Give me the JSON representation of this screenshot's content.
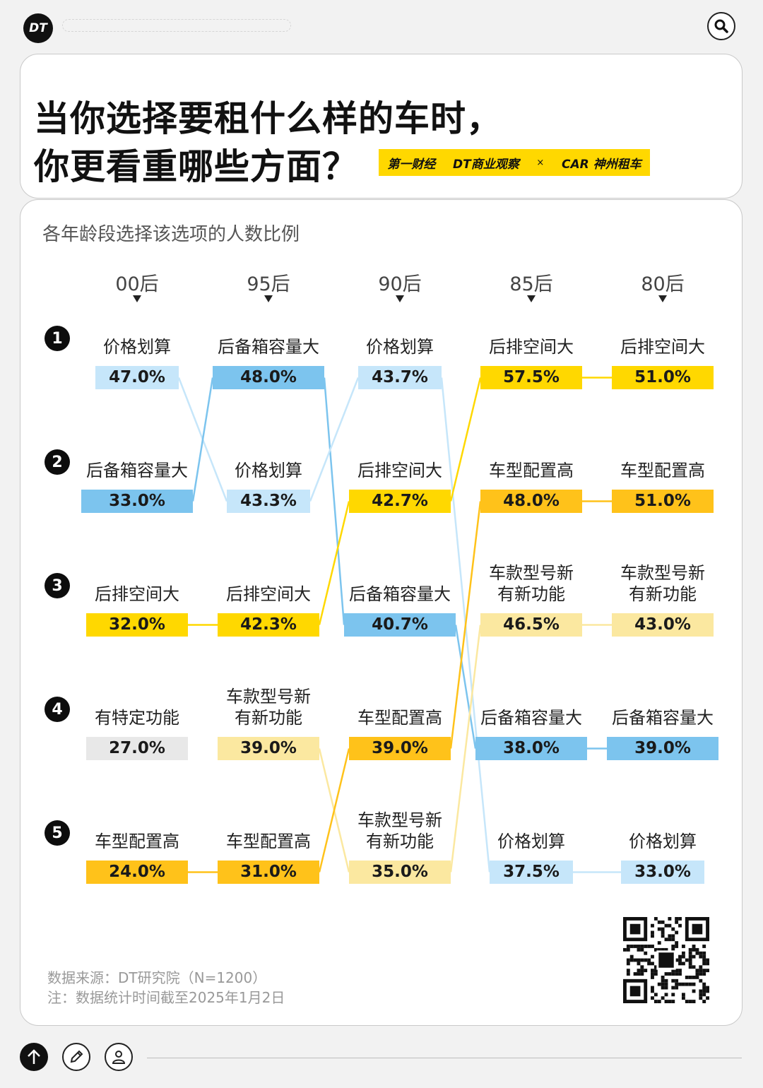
{
  "header": {
    "logo_text": "DT",
    "title_line1": "当你选择要租什么样的车时，",
    "title_line2": "你更看重哪些方面？",
    "brands": [
      "第一财经",
      "DT商业观察",
      "×",
      "CAR 神州租车"
    ]
  },
  "colors": {
    "价格划算": "#c6e6fa",
    "后备箱容量大": "#7cc4ee",
    "后排空间大": "#ffd800",
    "车型配置高": "#ffc21a",
    "车款型号新有新功能": "#fbe8a0",
    "有特定功能": "#e8e8e8"
  },
  "chart_data": {
    "type": "bump",
    "title": "当你选择要租什么样的车时，你更看重哪些方面？",
    "subtitle": "各年龄段选择该选项的人数比例",
    "columns": [
      "00后",
      "95后",
      "90后",
      "85后",
      "80后"
    ],
    "ranks": [
      "1",
      "2",
      "3",
      "4",
      "5"
    ],
    "cells": [
      [
        {
          "label": "价格划算",
          "value": 47.0,
          "text": "47.0%"
        },
        {
          "label": "后备箱容量大",
          "value": 33.0,
          "text": "33.0%"
        },
        {
          "label": "后排空间大",
          "value": 32.0,
          "text": "32.0%"
        },
        {
          "label": "有特定功能",
          "value": 27.0,
          "text": "27.0%"
        },
        {
          "label": "车型配置高",
          "value": 24.0,
          "text": "24.0%"
        }
      ],
      [
        {
          "label": "后备箱容量大",
          "value": 48.0,
          "text": "48.0%"
        },
        {
          "label": "价格划算",
          "value": 43.3,
          "text": "43.3%"
        },
        {
          "label": "后排空间大",
          "value": 42.3,
          "text": "42.3%"
        },
        {
          "label": "车款型号新\n有新功能",
          "key": "车款型号新有新功能",
          "value": 39.0,
          "text": "39.0%"
        },
        {
          "label": "车型配置高",
          "value": 31.0,
          "text": "31.0%"
        }
      ],
      [
        {
          "label": "价格划算",
          "value": 43.7,
          "text": "43.7%"
        },
        {
          "label": "后排空间大",
          "value": 42.7,
          "text": "42.7%"
        },
        {
          "label": "后备箱容量大",
          "value": 40.7,
          "text": "40.7%"
        },
        {
          "label": "车型配置高",
          "value": 39.0,
          "text": "39.0%"
        },
        {
          "label": "车款型号新\n有新功能",
          "key": "车款型号新有新功能",
          "value": 35.0,
          "text": "35.0%"
        }
      ],
      [
        {
          "label": "后排空间大",
          "value": 57.5,
          "text": "57.5%"
        },
        {
          "label": "车型配置高",
          "value": 48.0,
          "text": "48.0%"
        },
        {
          "label": "车款型号新\n有新功能",
          "key": "车款型号新有新功能",
          "value": 46.5,
          "text": "46.5%"
        },
        {
          "label": "后备箱容量大",
          "value": 38.0,
          "text": "38.0%"
        },
        {
          "label": "价格划算",
          "value": 37.5,
          "text": "37.5%"
        }
      ],
      [
        {
          "label": "后排空间大",
          "value": 51.0,
          "text": "51.0%"
        },
        {
          "label": "车型配置高",
          "value": 51.0,
          "text": "51.0%"
        },
        {
          "label": "车款型号新\n有新功能",
          "key": "车款型号新有新功能",
          "value": 43.0,
          "text": "43.0%"
        },
        {
          "label": "后备箱容量大",
          "value": 39.0,
          "text": "39.0%"
        },
        {
          "label": "价格划算",
          "value": 33.0,
          "text": "33.0%"
        }
      ]
    ]
  },
  "footer": {
    "source": "数据来源：DT研究院（N=1200）",
    "note": "注：数据统计时间截至2025年1月2日"
  }
}
